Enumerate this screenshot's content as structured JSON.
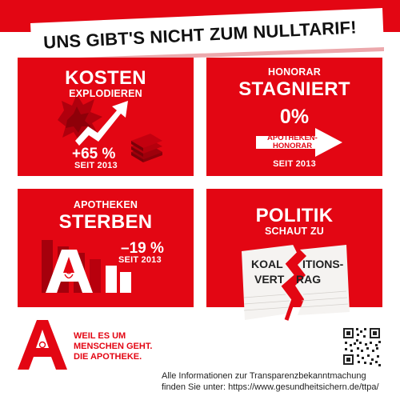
{
  "banner": {
    "title_prefix": "UNS GIBT'S NICHT ZUM ",
    "title_emph": "NULLTARIF!"
  },
  "tiles": [
    {
      "heading": "KOSTEN",
      "subheading": "EXPLODIEREN",
      "value": "+65 %",
      "since": "SEIT 2013"
    },
    {
      "subheading": "HONORAR",
      "heading": "STAGNIERT",
      "value": "0%",
      "arrow_label_1": "APOTHEKEN-",
      "arrow_label_2": "HONORAR",
      "since": "SEIT 2013"
    },
    {
      "subheading": "APOTHEKEN",
      "heading": "STERBEN",
      "value": "–19 %",
      "since": "SEIT 2013"
    },
    {
      "heading": "POLITIK",
      "subheading": "SCHAUT ZU",
      "contract_line_1a": "KOAL",
      "contract_line_1b": "ITIONS-",
      "contract_line_2a": "VERT",
      "contract_line_2b": "RAG"
    }
  ],
  "footer": {
    "slogan": [
      "WEIL ES UM",
      "MENSCHEN GEHT.",
      "DIE APOTHEKE."
    ],
    "info_line_1": "Alle Informationen zur Transparenzbekanntmachung",
    "info_line_2": "finden Sie unter: https://www.gesundheitsichern.de/ttpa/"
  },
  "colors": {
    "brand_red": "#e30613",
    "dark_red": "#b0000d",
    "text_dark": "#222222"
  },
  "icons": [
    "explosion-icon",
    "up-arrow-icon",
    "money-stack-icon",
    "right-arrow-icon",
    "declining-bar-chart-icon",
    "apotheke-a-logo",
    "torn-contract-icon",
    "qr-code"
  ]
}
